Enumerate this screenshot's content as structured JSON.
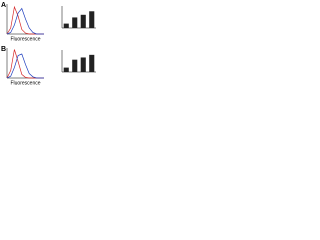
{
  "panels": [
    "A",
    "B"
  ],
  "chart_data": [
    {
      "type": "line",
      "x_label": "Fluorescence",
      "x": [
        0,
        1,
        2,
        3,
        4,
        5,
        6,
        7,
        8,
        9,
        10
      ],
      "xlim": [
        0,
        10
      ],
      "ylim": [
        0,
        100
      ],
      "series": [
        {
          "color": "#d62728",
          "values": [
            0,
            20,
            90,
            60,
            15,
            3,
            0,
            0,
            0,
            0,
            0
          ]
        },
        {
          "color": "#1f3fbf",
          "values": [
            0,
            5,
            30,
            70,
            85,
            50,
            20,
            5,
            0,
            0,
            0
          ]
        }
      ]
    },
    {
      "type": "bar",
      "categories": [
        null,
        null,
        null,
        null
      ],
      "values": [
        1,
        2.4,
        3,
        3.8
      ],
      "color": "#222222",
      "ylim": [
        0,
        5
      ]
    },
    {
      "type": "line",
      "x_label": "Fluorescence",
      "x": [
        0,
        1,
        2,
        3,
        4,
        5,
        6,
        7,
        8,
        9,
        10
      ],
      "xlim": [
        0,
        10
      ],
      "ylim": [
        0,
        100
      ],
      "series": [
        {
          "color": "#d62728",
          "values": [
            0,
            25,
            95,
            55,
            12,
            2,
            0,
            0,
            0,
            0,
            0
          ]
        },
        {
          "color": "#1f3fbf",
          "values": [
            0,
            6,
            35,
            75,
            80,
            45,
            15,
            4,
            0,
            0,
            0
          ]
        }
      ]
    },
    {
      "type": "bar",
      "categories": [
        null,
        null,
        null,
        null
      ],
      "values": [
        1,
        2.8,
        3.3,
        3.9
      ],
      "color": "#222222",
      "ylim": [
        0,
        5
      ]
    }
  ]
}
